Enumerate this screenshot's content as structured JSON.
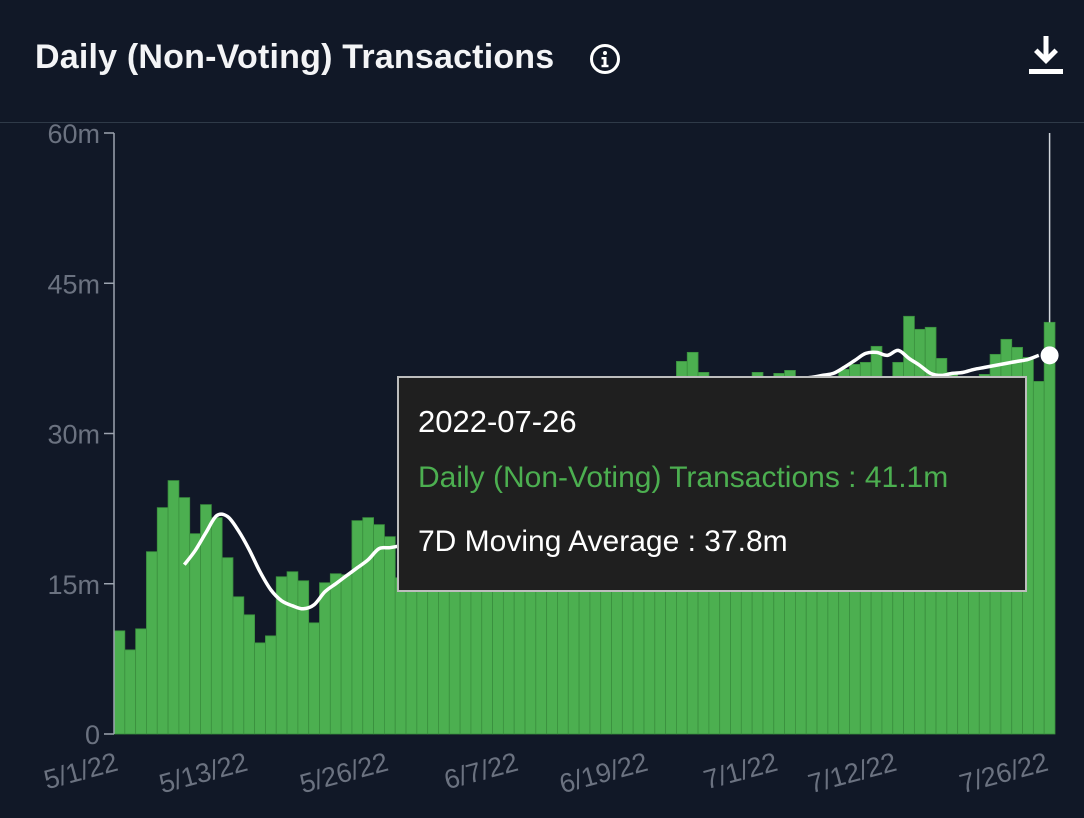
{
  "header": {
    "title": "Daily (Non-Voting) Transactions",
    "info_icon": "info-circle-icon",
    "download_icon": "download-icon"
  },
  "colors": {
    "background": "#111827",
    "bar": "#4caf50",
    "bar_stroke": "#3a8f3e",
    "moving_average": "#ffffff",
    "tooltip_series": "#4caf50"
  },
  "tooltip": {
    "date": "2022-07-26",
    "series_line": "Daily (Non-Voting) Transactions : 41.1m",
    "ma_line": "7D Moving Average : 37.8m"
  },
  "chart_data": {
    "type": "bar",
    "title": "Daily (Non-Voting) Transactions",
    "ylim": [
      0,
      60
    ],
    "yticks": [
      0,
      15,
      30,
      45,
      60
    ],
    "ytick_labels": [
      "0",
      "15m",
      "30m",
      "45m",
      "60m"
    ],
    "xtick_labels": [
      "5/1/22",
      "5/13/22",
      "5/26/22",
      "6/7/22",
      "6/19/22",
      "7/1/22",
      "7/12/22",
      "7/26/22"
    ],
    "xtick_dates": [
      "2022-05-01",
      "2022-05-13",
      "2022-05-26",
      "2022-06-07",
      "2022-06-19",
      "2022-07-01",
      "2022-07-12",
      "2022-07-26"
    ],
    "grid": false,
    "series": [
      {
        "name": "Daily (Non-Voting) Transactions",
        "type": "bar",
        "start_date": "2022-05-01",
        "values": [
          10.3,
          8.4,
          10.5,
          18.2,
          22.6,
          25.3,
          23.6,
          20.0,
          22.9,
          21.6,
          17.6,
          13.7,
          11.9,
          9.1,
          9.8,
          15.7,
          16.2,
          15.3,
          11.1,
          15.1,
          16.0,
          15.9,
          21.3,
          21.6,
          20.9,
          19.7,
          15.6,
          16.7,
          17.4,
          17.6,
          18.2,
          18.9,
          19.4,
          20.1,
          21.0,
          21.9,
          22.6,
          23.4,
          24.3,
          25.2,
          26.1,
          27.0,
          27.9,
          28.8,
          29.6,
          30.5,
          31.4,
          32.3,
          33.1,
          33.9,
          34.6,
          35.2,
          37.2,
          38.1,
          36.1,
          34.8,
          33.9,
          34.6,
          35.3,
          36.1,
          35.2,
          36.0,
          36.3,
          35.6,
          34.6,
          35.0,
          35.6,
          36.4,
          36.9,
          37.1,
          38.7,
          35.1,
          37.1,
          41.7,
          40.4,
          40.6,
          37.5,
          36.1,
          35.5,
          34.9,
          35.9,
          37.9,
          39.4,
          38.6,
          37.6,
          35.2,
          41.1
        ]
      },
      {
        "name": "7D Moving Average",
        "type": "line",
        "start_date": "2022-05-07",
        "values": [
          16.9,
          18.3,
          20.1,
          21.8,
          21.7,
          20.3,
          18.4,
          16.2,
          14.4,
          13.3,
          12.8,
          12.5,
          12.9,
          14.2,
          15.0,
          15.8,
          16.6,
          17.4,
          18.5,
          18.6,
          18.8,
          19.1,
          19.6,
          20.1,
          20.7,
          21.4,
          22.1,
          22.9,
          23.6,
          24.3,
          25.1,
          25.9,
          26.7,
          27.5,
          28.3,
          29.1,
          29.9,
          30.7,
          31.5,
          32.2,
          33.0,
          33.6,
          34.2,
          34.7,
          35.1,
          35.3,
          35.4,
          35.4,
          35.3,
          35.2,
          35.2,
          35.3,
          35.3,
          35.3,
          35.3,
          35.4,
          35.4,
          35.5,
          35.6,
          35.8,
          36.0,
          36.6,
          37.3,
          38.0,
          38.1,
          37.8,
          38.3,
          37.5,
          36.8,
          36.0,
          35.8,
          36.0,
          36.1,
          36.4,
          36.6,
          36.8,
          37.0,
          37.2,
          37.4,
          37.8
        ]
      }
    ],
    "highlight": {
      "date": "2022-07-26",
      "value": 41.1,
      "moving_average": 37.8
    }
  }
}
